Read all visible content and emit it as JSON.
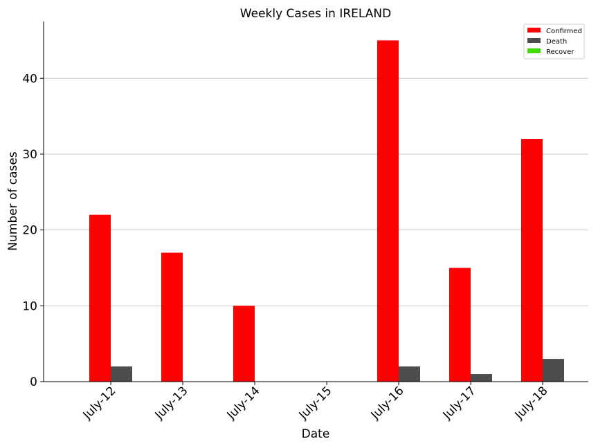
{
  "chart_data": {
    "type": "bar",
    "title": "Weekly Cases in IRELAND",
    "xlabel": "Date",
    "ylabel": "Number of cases",
    "categories": [
      "July-12",
      "July-13",
      "July-14",
      "July-15",
      "July-16",
      "July-17",
      "July-18"
    ],
    "series": [
      {
        "name": "Confirmed",
        "color": "#ff0000",
        "values": [
          22,
          17,
          10,
          0,
          45,
          15,
          32
        ]
      },
      {
        "name": "Death",
        "color": "#4d4d4d",
        "values": [
          2,
          0,
          0,
          0,
          2,
          1,
          3
        ]
      },
      {
        "name": "Recover",
        "color": "#44dd00",
        "values": [
          0,
          0,
          0,
          0,
          0,
          0,
          0
        ]
      }
    ],
    "ylim": [
      0,
      47.5
    ],
    "yticks": [
      0,
      10,
      20,
      30,
      40
    ],
    "grid": "horizontal",
    "legend": "top-right"
  }
}
